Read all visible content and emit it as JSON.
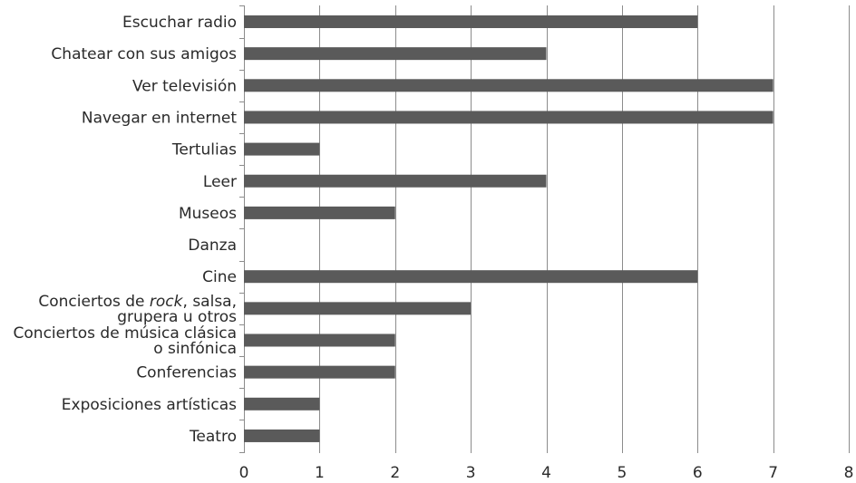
{
  "chart_data": {
    "type": "bar",
    "orientation": "horizontal",
    "categories": [
      [
        "Escuchar radio"
      ],
      [
        "Chatear con sus amigos"
      ],
      [
        "Ver televisión"
      ],
      [
        "Navegar en internet"
      ],
      [
        "Tertulias"
      ],
      [
        "Leer"
      ],
      [
        "Museos"
      ],
      [
        "Danza"
      ],
      [
        "Cine"
      ],
      [
        "Conciertos de rock, salsa,",
        "grupera u otros"
      ],
      [
        "Conciertos de música clásica",
        "o sinfónica"
      ],
      [
        "Conferencias"
      ],
      [
        "Exposiciones artísticas"
      ],
      [
        "Teatro"
      ]
    ],
    "values": [
      6,
      4,
      7,
      7,
      1,
      4,
      2,
      0,
      6,
      3,
      2,
      2,
      1,
      1
    ],
    "x_ticks": [
      "0",
      "1",
      "2",
      "3",
      "4",
      "5",
      "6",
      "7",
      "8"
    ],
    "xlim": [
      0,
      8
    ],
    "grid": "vertical",
    "title": "",
    "xlabel": "",
    "ylabel": "",
    "colors": {
      "bar": "#5a5a5a",
      "grid": "#8c8c8c",
      "text": "#2a2a2a"
    }
  }
}
